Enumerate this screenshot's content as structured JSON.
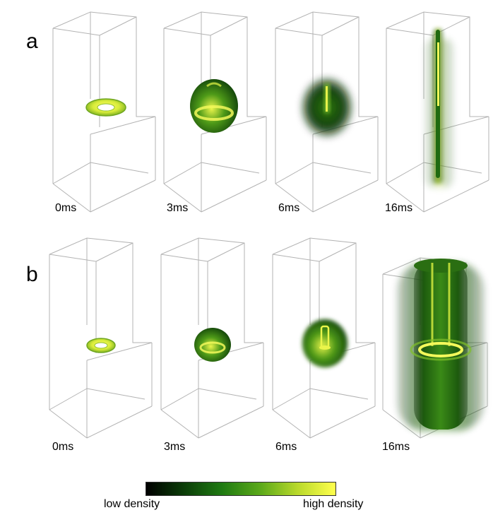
{
  "rows": [
    {
      "label": "a",
      "times": [
        "0ms",
        "3ms",
        "6ms",
        "16ms"
      ]
    },
    {
      "label": "b",
      "times": [
        "0ms",
        "3ms",
        "6ms",
        "16ms"
      ]
    }
  ],
  "colorbar": {
    "low_label": "low density",
    "high_label": "high density",
    "colors": [
      "#000000",
      "#0b3d08",
      "#1f7a12",
      "#5aa81a",
      "#b9d92b",
      "#ffff4d"
    ]
  },
  "colors": {
    "box_edge": "#b3b3b3",
    "dense": "#ffff4d",
    "mid": "#5aa81a",
    "dark": "#0b3d08"
  }
}
